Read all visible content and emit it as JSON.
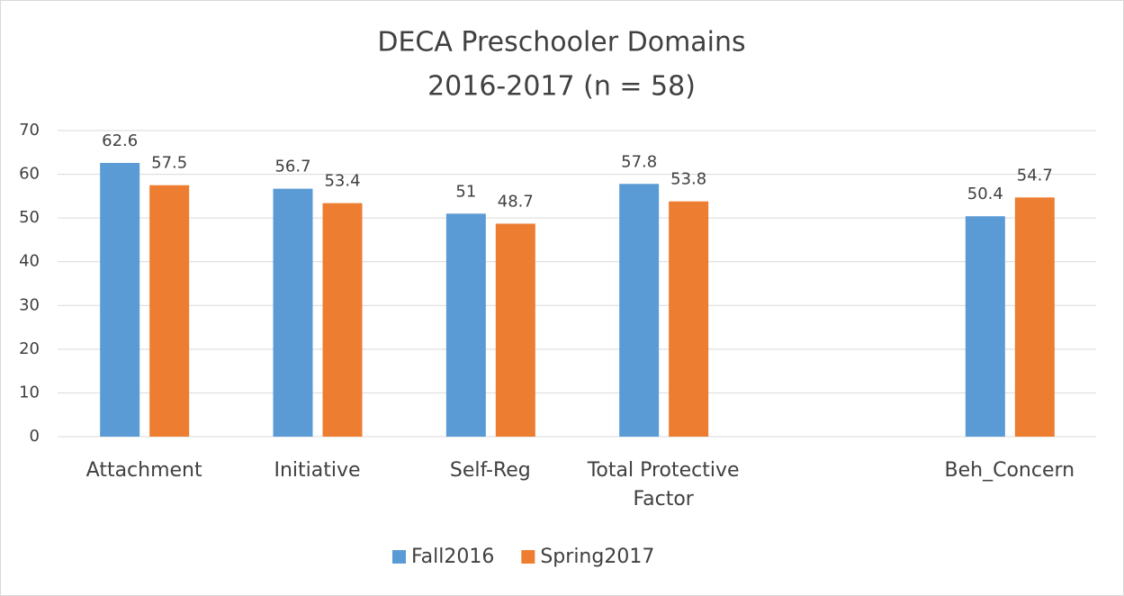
{
  "chart_data": {
    "type": "bar",
    "title_lines": [
      "DECA Preschooler Domains",
      "2016-2017 (n = 58)"
    ],
    "categories": [
      "Attachment",
      "Initiative",
      "Self-Reg",
      "Total Protective Factor",
      null,
      "Beh_Concern"
    ],
    "series": [
      {
        "name": "Fall2016",
        "color": "#5b9bd5",
        "values": [
          62.6,
          56.7,
          51,
          57.8,
          null,
          50.4
        ]
      },
      {
        "name": "Spring2017",
        "color": "#ed7d31",
        "values": [
          57.5,
          53.4,
          48.7,
          53.8,
          null,
          54.7
        ]
      }
    ],
    "ylim": [
      0,
      70
    ],
    "yticks": [
      0,
      10,
      20,
      30,
      40,
      50,
      60,
      70
    ],
    "grid": true,
    "legend": "bottom"
  }
}
